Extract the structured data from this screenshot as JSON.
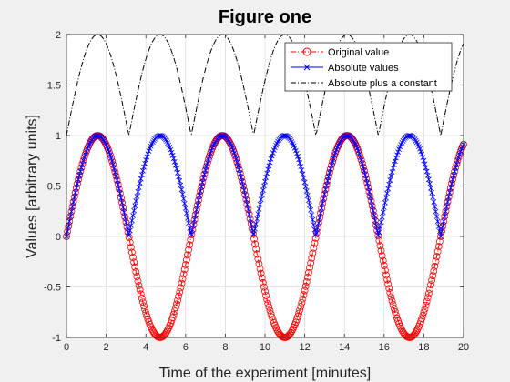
{
  "chart_data": {
    "type": "line",
    "title": "Figure one",
    "xlabel": "Time of the experiment [minutes]",
    "ylabel": "Values  [arbitrary units]",
    "xlim": [
      0,
      20
    ],
    "ylim": [
      -1,
      2
    ],
    "xticks": [
      "0",
      "2",
      "4",
      "6",
      "8",
      "10",
      "12",
      "14",
      "16",
      "18",
      "20"
    ],
    "yticks": [
      "-1",
      "-0.5",
      "0",
      "0.5",
      "1",
      "1.5",
      "2"
    ],
    "grid": true,
    "legend_position": "top-right",
    "series": [
      {
        "name": "Original value",
        "function": "sin(x)",
        "color": "#ff0000",
        "line_style": "dash-dot",
        "marker": "circle"
      },
      {
        "name": "Absolute values",
        "function": "abs(sin(x))",
        "color": "#0000ff",
        "line_style": "solid",
        "marker": "cross"
      },
      {
        "name": "Absolute plus a constant",
        "function": "abs(sin(x)) + 1",
        "color": "#000000",
        "line_style": "dash-dot",
        "marker": "none"
      }
    ]
  }
}
